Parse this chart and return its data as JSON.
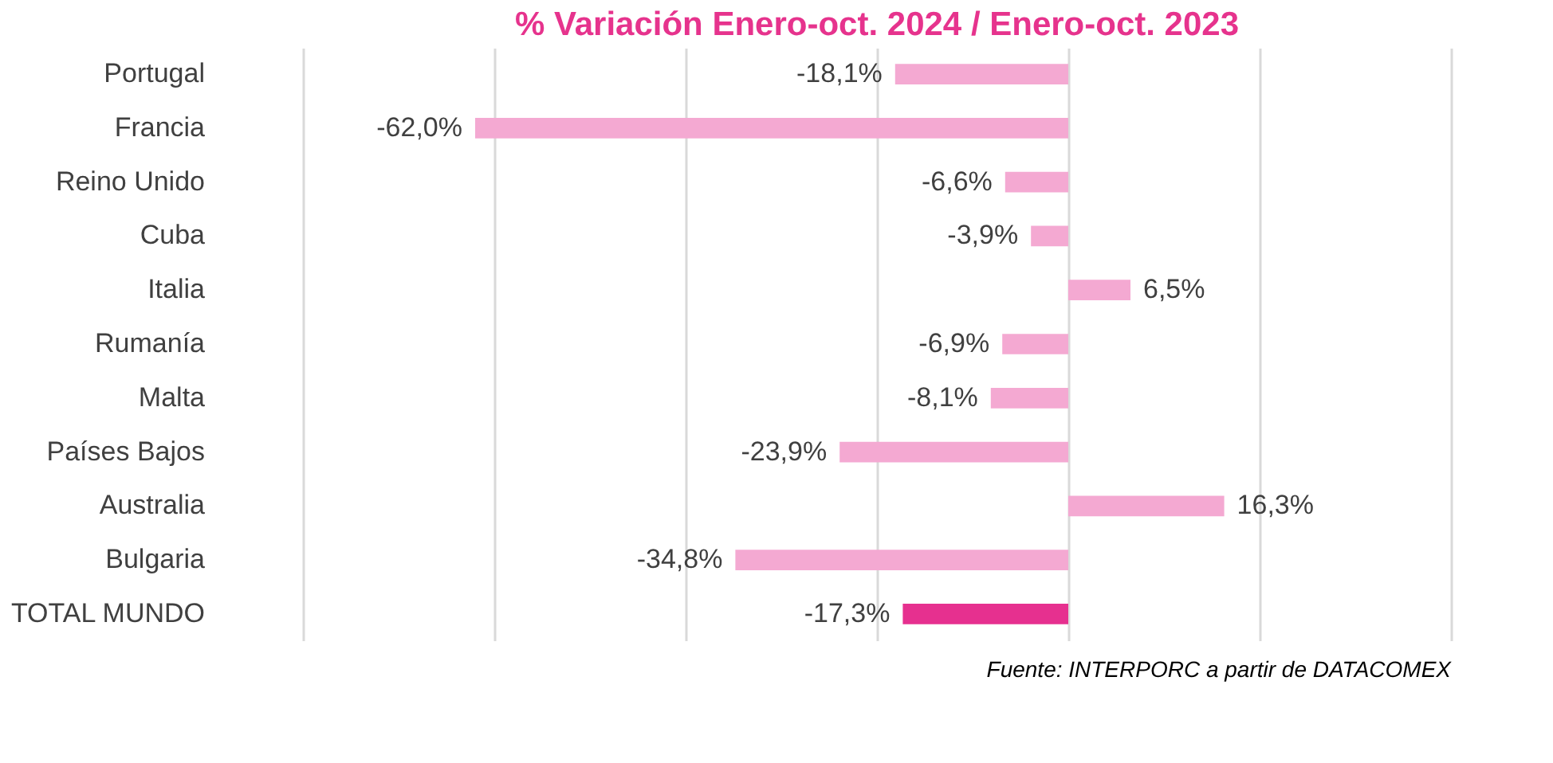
{
  "chart_data": {
    "type": "bar",
    "orientation": "horizontal",
    "title": "% Variación Enero-oct.  2024 / Enero-oct.  2023",
    "categories": [
      "Portugal",
      "Francia",
      "Reino Unido",
      "Cuba",
      "Italia",
      "Rumanía",
      "Malta",
      "Países Bajos",
      "Australia",
      "Bulgaria",
      "TOTAL MUNDO"
    ],
    "values": [
      -18.1,
      -62.0,
      -6.6,
      -3.9,
      6.5,
      -6.9,
      -8.1,
      -23.9,
      16.3,
      -34.8,
      -17.3
    ],
    "value_labels": [
      "-18,1%",
      "-62,0%",
      "-6,6%",
      "-3,9%",
      "6,5%",
      "-6,9%",
      "-8,1%",
      "-23,9%",
      "16,3%",
      "-34,8%",
      "-17,3%"
    ],
    "colors": [
      "#f4a9d2",
      "#f4a9d2",
      "#f4a9d2",
      "#f4a9d2",
      "#f4a9d2",
      "#f4a9d2",
      "#f4a9d2",
      "#f4a9d2",
      "#f4a9d2",
      "#f4a9d2",
      "#e6308f"
    ],
    "xlim": [
      -80,
      40
    ],
    "xticks": [
      -80,
      -60,
      -40,
      -20,
      0,
      20,
      40
    ],
    "grid": "x",
    "tick_labels": "y",
    "annotations": [
      "Fuente: INTERPORC  a partir de DATACOMEX"
    ]
  }
}
